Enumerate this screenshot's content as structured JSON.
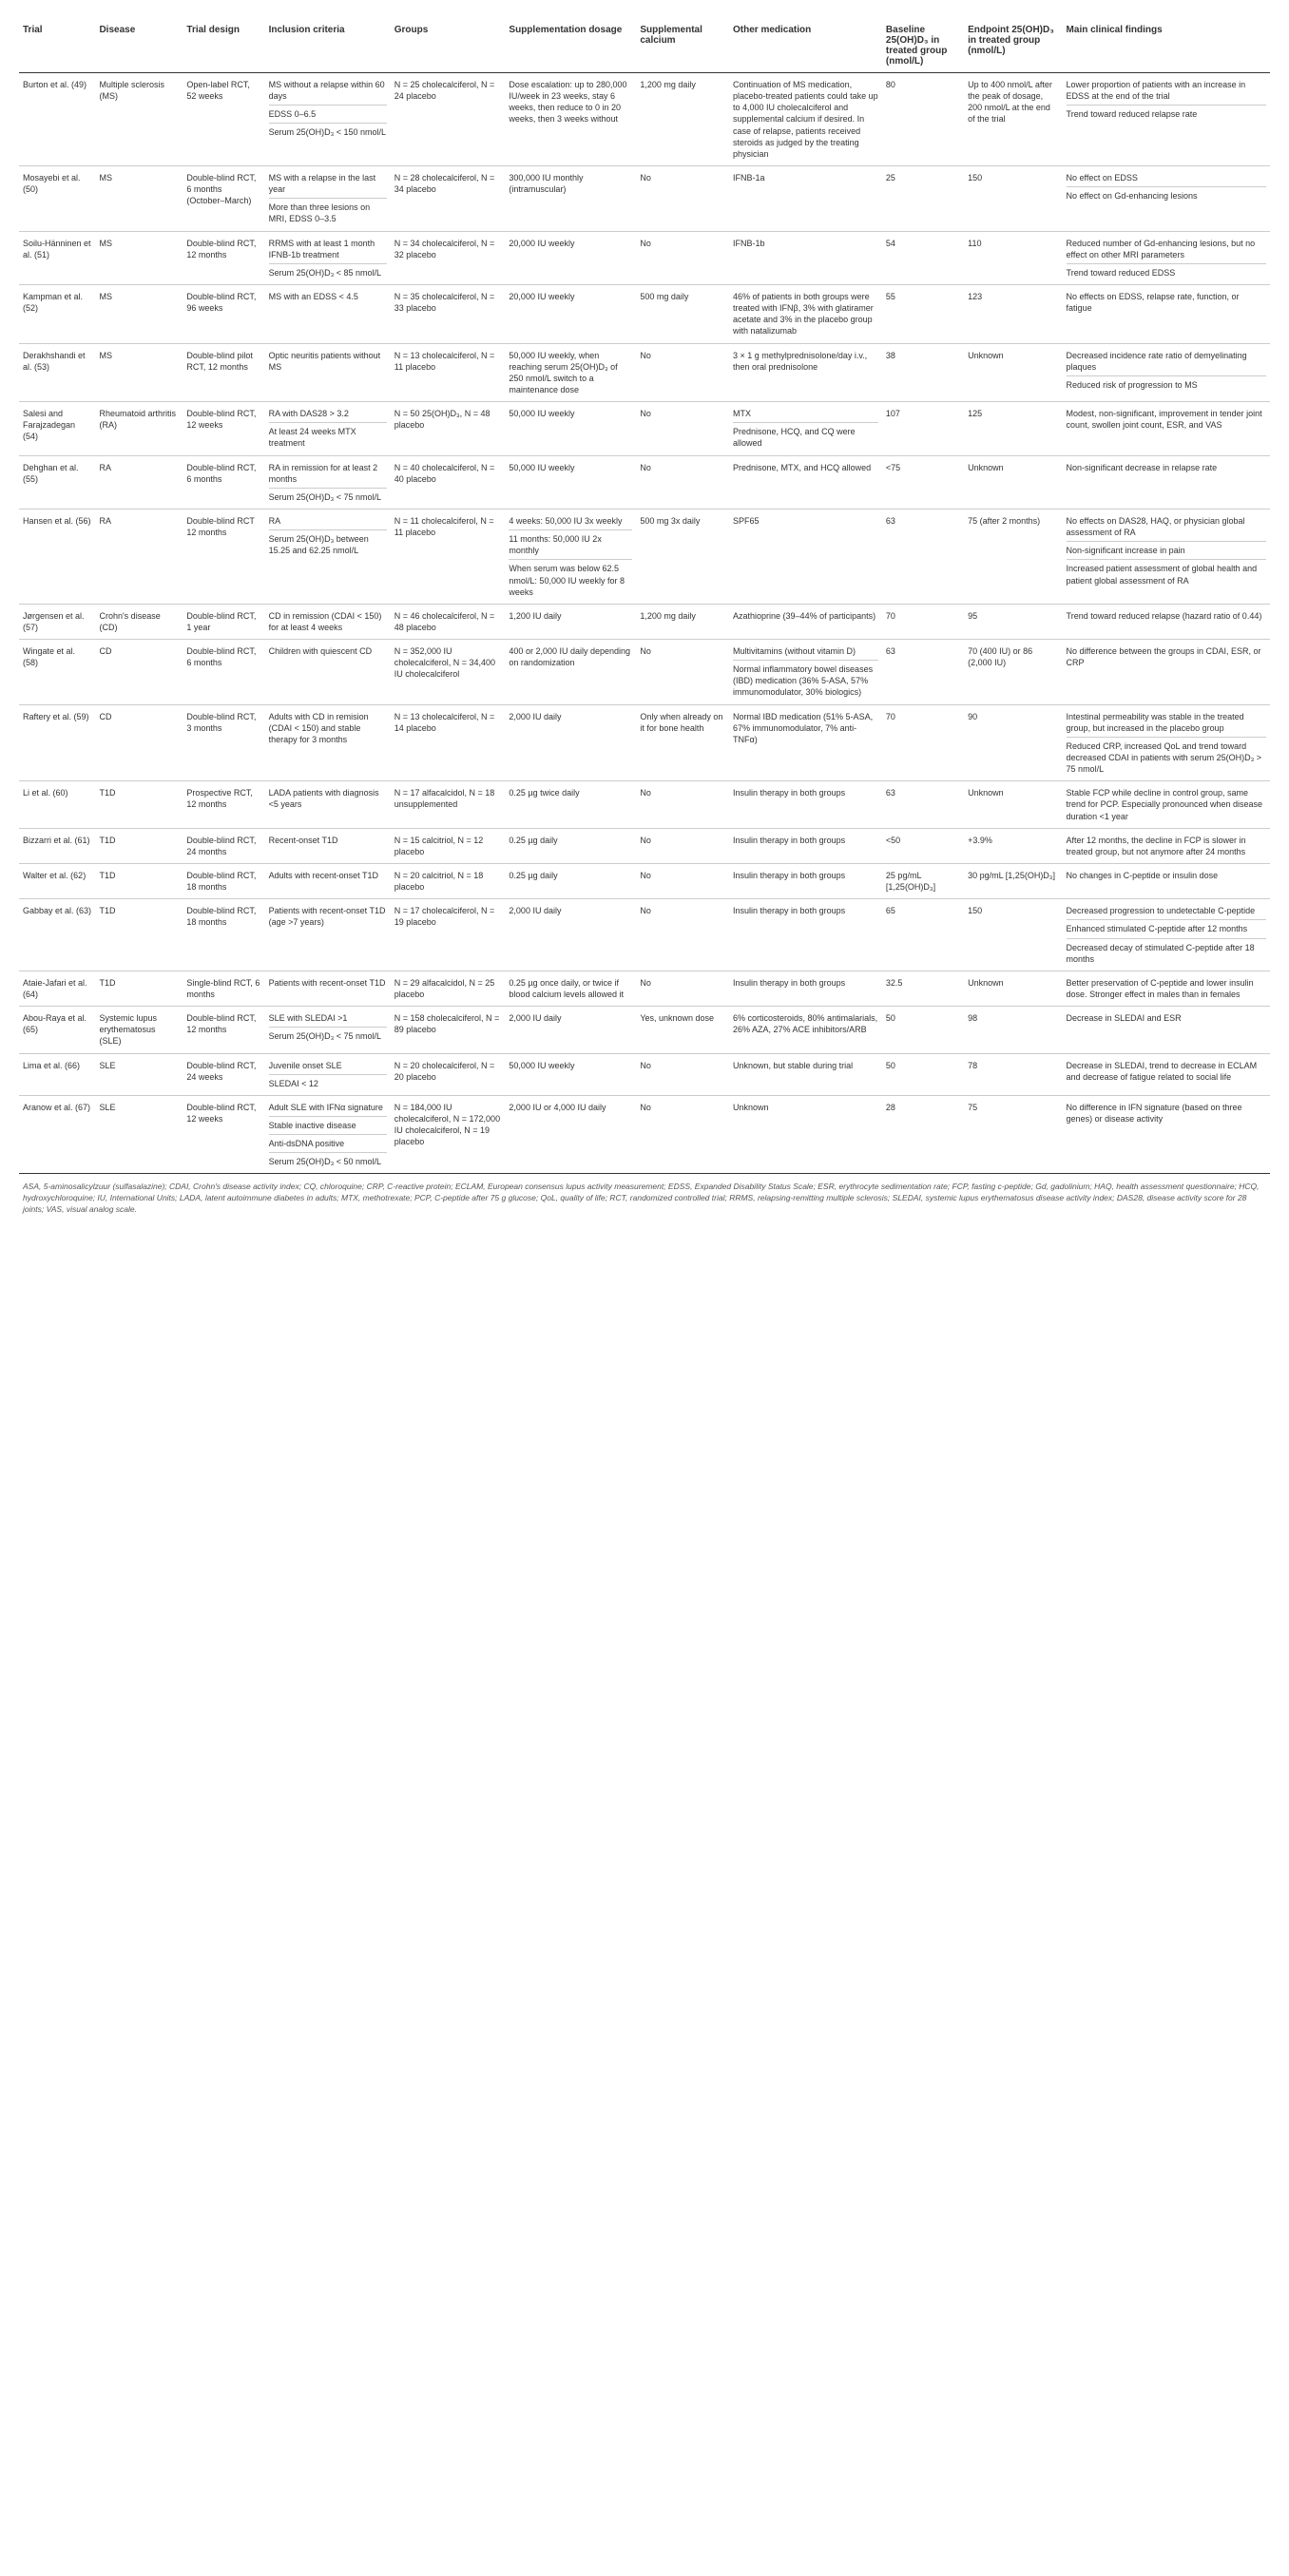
{
  "table": {
    "columns": [
      "Trial",
      "Disease",
      "Trial design",
      "Inclusion criteria",
      "Groups",
      "Supplementation dosage",
      "Supplemental calcium",
      "Other medication",
      "Baseline 25(OH)D₃ in treated group (nmol/L)",
      "Endpoint 25(OH)D₃ in treated group (nmol/L)",
      "Main clinical findings"
    ],
    "footnote": "ASA, 5-aminosalicylzuur (sulfasalazine); CDAI, Crohn's disease activity index; CQ, chloroquine; CRP, C-reactive protein; ECLAM, European consensus lupus activity measurement; EDSS, Expanded Disability Status Scale; ESR, erythrocyte sedimentation rate; FCP, fasting c-peptide; Gd, gadolinium; HAQ, health assessment questionnaire; HCQ, hydroxychloroquine; IU, International Units; LADA, latent autoimmune diabetes in adults; MTX, methotrexate; PCP, C-peptide after 75 g glucose; QoL, quality of life; RCT, randomized controlled trial; RRMS, relapsing-remitting multiple sclerosis; SLEDAI, systemic lupus erythematosus disease activity index; DAS28, disease activity score for 28 joints; VAS, visual analog scale.",
    "trials": [
      {
        "trial": "Burton et al. (49)",
        "disease": "Multiple sclerosis (MS)",
        "design": "Open-label RCT, 52 weeks",
        "inclusion": [
          "MS without a relapse within 60 days",
          "EDSS 0–6.5",
          "Serum 25(OH)D₃ < 150 nmol/L"
        ],
        "groups": "N = 25 cholecalciferol, N = 24 placebo",
        "dosage": "Dose escalation: up to 280,000 IU/week in 23 weeks, stay 6 weeks, then reduce to 0 in 20 weeks, then 3 weeks without",
        "calcium": "1,200 mg daily",
        "other": "Continuation of MS medication, placebo-treated patients could take up to 4,000 IU cholecalciferol and supplemental calcium if desired. In case of relapse, patients received steroids as judged by the treating physician",
        "baseline": "80",
        "endpoint": "Up to 400 nmol/L after the peak of dosage, 200 nmol/L at the end of the trial",
        "findings": [
          "Lower proportion of patients with an increase in EDSS at the end of the trial",
          "Trend toward reduced relapse rate"
        ]
      },
      {
        "trial": "Mosayebi et al. (50)",
        "disease": "MS",
        "design": "Double-blind RCT, 6 months (October–March)",
        "inclusion": [
          "MS with a relapse in the last year",
          "More than three lesions on MRI, EDSS 0–3.5"
        ],
        "groups": "N = 28 cholecalciferol, N = 34 placebo",
        "dosage": "300,000 IU monthly (intramuscular)",
        "calcium": "No",
        "other": "IFNB-1a",
        "baseline": "25",
        "endpoint": "150",
        "findings": [
          "No effect on EDSS",
          "No effect on Gd-enhancing lesions"
        ]
      },
      {
        "trial": "Soilu-Hänninen et al. (51)",
        "disease": "MS",
        "design": "Double-blind RCT, 12 months",
        "inclusion": [
          "RRMS with at least 1 month IFNB-1b treatment",
          "Serum 25(OH)D₃ < 85 nmol/L"
        ],
        "groups": "N = 34 cholecalciferol, N = 32 placebo",
        "dosage": "20,000 IU weekly",
        "calcium": "No",
        "other": "IFNB-1b",
        "baseline": "54",
        "endpoint": "110",
        "findings": [
          "Reduced number of Gd-enhancing lesions, but no effect on other MRI parameters",
          "Trend toward reduced EDSS"
        ]
      },
      {
        "trial": "Kampman et al. (52)",
        "disease": "MS",
        "design": "Double-blind RCT, 96 weeks",
        "inclusion": [
          "MS with an EDSS < 4.5"
        ],
        "groups": "N = 35 cholecalciferol, N = 33 placebo",
        "dosage": "20,000 IU weekly",
        "calcium": "500 mg daily",
        "other": "46% of patients in both groups were treated with IFNβ, 3% with glatiramer acetate and 3% in the placebo group with natalizumab",
        "baseline": "55",
        "endpoint": "123",
        "findings": [
          "No effects on EDSS, relapse rate, function, or fatigue"
        ]
      },
      {
        "trial": "Derakhshandi et al. (53)",
        "disease": "MS",
        "design": "Double-blind pilot RCT, 12 months",
        "inclusion": [
          "Optic neuritis patients without MS"
        ],
        "groups": "N = 13 cholecalciferol, N = 11 placebo",
        "dosage": "50,000 IU weekly, when reaching serum 25(OH)D₃ of 250 nmol/L switch to a maintenance dose",
        "calcium": "No",
        "other": "3 × 1 g methylprednisolone/day i.v., then oral prednisolone",
        "baseline": "38",
        "endpoint": "Unknown",
        "findings": [
          "Decreased incidence rate ratio of demyelinating plaques",
          "Reduced risk of progression to MS"
        ]
      },
      {
        "trial": "Salesi and Farajzadegan (54)",
        "disease": "Rheumatoid arthritis (RA)",
        "design": "Double-blind RCT, 12 weeks",
        "inclusion": [
          "RA with DAS28 > 3.2",
          "At least 24 weeks MTX treatment"
        ],
        "groups": "N = 50 25(OH)D₃, N = 48 placebo",
        "dosage": "50,000 IU weekly",
        "calcium": "No",
        "other": [
          "MTX",
          "Prednisone, HCQ, and CQ were allowed"
        ],
        "baseline": "107",
        "endpoint": "125",
        "findings": [
          "Modest, non-significant, improvement in tender joint count, swollen joint count, ESR, and VAS"
        ]
      },
      {
        "trial": "Dehghan et al. (55)",
        "disease": "RA",
        "design": "Double-blind RCT, 6 months",
        "inclusion": [
          "RA in remission for at least 2 months",
          "Serum 25(OH)D₃ < 75 nmol/L"
        ],
        "groups": "N = 40 cholecalciferol, N = 40 placebo",
        "dosage": "50,000 IU weekly",
        "calcium": "No",
        "other": "Prednisone, MTX, and HCQ allowed",
        "baseline": "<75",
        "endpoint": "Unknown",
        "findings": [
          "Non-significant decrease in relapse rate"
        ]
      },
      {
        "trial": "Hansen et al. (56)",
        "disease": "RA",
        "design": "Double-blind RCT 12 months",
        "inclusion": [
          "RA",
          "Serum 25(OH)D₃ between 15.25 and 62.25 nmol/L"
        ],
        "groups": "N = 11 cholecalciferol, N = 11 placebo",
        "dosage": [
          "4 weeks: 50,000 IU 3x weekly",
          "11 months: 50,000 IU 2x monthly",
          "When serum was below 62.5 nmol/L: 50,000 IU weekly for 8 weeks"
        ],
        "calcium": "500 mg 3x daily",
        "other": "SPF65",
        "baseline": "63",
        "endpoint": "75 (after 2 months)",
        "findings": [
          "No effects on DAS28, HAQ, or physician global assessment of RA",
          "Non-significant increase in pain",
          "Increased patient assessment of global health and patient global assessment of RA"
        ]
      },
      {
        "trial": "Jørgensen et al. (57)",
        "disease": "Crohn's disease (CD)",
        "design": "Double-blind RCT, 1 year",
        "inclusion": [
          "CD in remission (CDAI < 150) for at least 4 weeks"
        ],
        "groups": "N = 46 cholecalciferol, N = 48 placebo",
        "dosage": "1,200 IU daily",
        "calcium": "1,200 mg daily",
        "other": "Azathioprine (39–44% of participants)",
        "baseline": "70",
        "endpoint": "95",
        "findings": [
          "Trend toward reduced relapse (hazard ratio of 0.44)"
        ]
      },
      {
        "trial": "Wingate et al. (58)",
        "disease": "CD",
        "design": "Double-blind RCT, 6 months",
        "inclusion": [
          "Children with quiescent CD"
        ],
        "groups": "N = 352,000 IU cholecalciferol, N = 34,400 IU cholecalciferol",
        "dosage": "400 or 2,000 IU daily depending on randomization",
        "calcium": "No",
        "other": [
          "Multivitamins (without vitamin D)",
          "Normal inflammatory bowel diseases (IBD) medication (36% 5-ASA, 57% immunomodulator, 30% biologics)"
        ],
        "baseline": "63",
        "endpoint": "70 (400 IU) or 86 (2,000 IU)",
        "findings": [
          "No difference between the groups in CDAI, ESR, or CRP"
        ]
      },
      {
        "trial": "Raftery et al. (59)",
        "disease": "CD",
        "design": "Double-blind RCT, 3 months",
        "inclusion": [
          "Adults with CD in remision (CDAI < 150) and stable therapy for 3 months"
        ],
        "groups": "N = 13 cholecalciferol, N = 14 placebo",
        "dosage": "2,000 IU daily",
        "calcium": "Only when already on it for bone health",
        "other": "Normal IBD medication (51% 5-ASA, 67% immunomodulator, 7% anti-TNFα)",
        "baseline": "70",
        "endpoint": "90",
        "findings": [
          "Intestinal permeability was stable in the treated group, but increased in the placebo group",
          "Reduced CRP, increased QoL and trend toward decreased CDAI in patients with serum 25(OH)D₃ > 75 nmol/L"
        ]
      },
      {
        "trial": "Li et al. (60)",
        "disease": "T1D",
        "design": "Prospective RCT, 12 months",
        "inclusion": [
          "LADA patients with diagnosis <5 years"
        ],
        "groups": "N = 17 alfacalcidol, N = 18 unsupplemented",
        "dosage": "0.25 µg twice daily",
        "calcium": "No",
        "other": "Insulin therapy in both groups",
        "baseline": "63",
        "endpoint": "Unknown",
        "findings": [
          "Stable FCP while decline in control group, same trend for PCP. Especially pronounced when disease duration <1 year"
        ]
      },
      {
        "trial": "Bizzarri et al. (61)",
        "disease": "T1D",
        "design": "Double-blind RCT, 24 months",
        "inclusion": [
          "Recent-onset T1D"
        ],
        "groups": "N = 15 calcitriol, N = 12 placebo",
        "dosage": "0.25 µg daily",
        "calcium": "No",
        "other": "Insulin therapy in both groups",
        "baseline": "<50",
        "endpoint": "+3.9%",
        "findings": [
          "After 12 months, the decline in FCP is slower in treated group, but not anymore after 24 months"
        ]
      },
      {
        "trial": "Walter et al. (62)",
        "disease": "T1D",
        "design": "Double-blind RCT, 18 months",
        "inclusion": [
          "Adults with recent-onset T1D"
        ],
        "groups": "N = 20 calcitriol, N = 18 placebo",
        "dosage": "0.25 µg daily",
        "calcium": "No",
        "other": "Insulin therapy in both groups",
        "baseline": "25 pg/mL [1,25(OH)D₃]",
        "endpoint": "30 pg/mL [1,25(OH)D₃]",
        "findings": [
          "No changes in C-peptide or insulin dose"
        ]
      },
      {
        "trial": "Gabbay et al. (63)",
        "disease": "T1D",
        "design": "Double-blind RCT, 18 months",
        "inclusion": [
          "Patients with recent-onset T1D (age >7 years)"
        ],
        "groups": "N = 17 cholecalciferol, N = 19 placebo",
        "dosage": "2,000 IU daily",
        "calcium": "No",
        "other": "Insulin therapy in both groups",
        "baseline": "65",
        "endpoint": "150",
        "findings": [
          "Decreased progression to undetectable C-peptide",
          "Enhanced stimulated C-peptide after 12 months",
          "Decreased decay of stimulated C-peptide after 18 months"
        ]
      },
      {
        "trial": "Ataie-Jafari et al. (64)",
        "disease": "T1D",
        "design": "Single-blind RCT, 6 months",
        "inclusion": [
          "Patients with recent-onset T1D"
        ],
        "groups": "N = 29 alfacalcidol, N = 25 placebo",
        "dosage": "0.25 µg once daily, or twice if blood calcium levels allowed it",
        "calcium": "No",
        "other": "Insulin therapy in both groups",
        "baseline": "32.5",
        "endpoint": "Unknown",
        "findings": [
          "Better preservation of C-peptide and lower insulin dose. Stronger effect in males than in females"
        ]
      },
      {
        "trial": "Abou-Raya et al. (65)",
        "disease": "Systemic lupus erythematosus (SLE)",
        "design": "Double-blind RCT, 12 months",
        "inclusion": [
          "SLE with SLEDAI >1",
          "Serum 25(OH)D₃ < 75 nmol/L"
        ],
        "groups": "N = 158 cholecalciferol, N = 89 placebo",
        "dosage": "2,000 IU daily",
        "calcium": "Yes, unknown dose",
        "other": "6% corticosteroids, 80% antimalarials, 26% AZA, 27% ACE inhibitors/ARB",
        "baseline": "50",
        "endpoint": "98",
        "findings": [
          "Decrease in SLEDAI and ESR"
        ]
      },
      {
        "trial": "Lima et al. (66)",
        "disease": "SLE",
        "design": "Double-blind RCT, 24 weeks",
        "inclusion": [
          "Juvenile onset SLE",
          "SLEDAI < 12"
        ],
        "groups": "N = 20 cholecalciferol, N = 20 placebo",
        "dosage": "50,000 IU weekly",
        "calcium": "No",
        "other": "Unknown, but stable during trial",
        "baseline": "50",
        "endpoint": "78",
        "findings": [
          "Decrease in SLEDAI, trend to decrease in ECLAM and decrease of fatigue related to social life"
        ]
      },
      {
        "trial": "Aranow et al. (67)",
        "disease": "SLE",
        "design": "Double-blind RCT, 12 weeks",
        "inclusion": [
          "Adult SLE with IFNα signature",
          "Stable inactive disease",
          "Anti-dsDNA positive",
          "Serum 25(OH)D₃ < 50 nmol/L"
        ],
        "groups": "N = 184,000 IU cholecalciferol, N = 172,000 IU cholecalciferol, N = 19 placebo",
        "dosage": "2,000 IU or 4,000 IU daily",
        "calcium": "No",
        "other": "Unknown",
        "baseline": "28",
        "endpoint": "75",
        "findings": [
          "No difference in IFN signature (based on three genes) or disease activity"
        ]
      }
    ]
  }
}
